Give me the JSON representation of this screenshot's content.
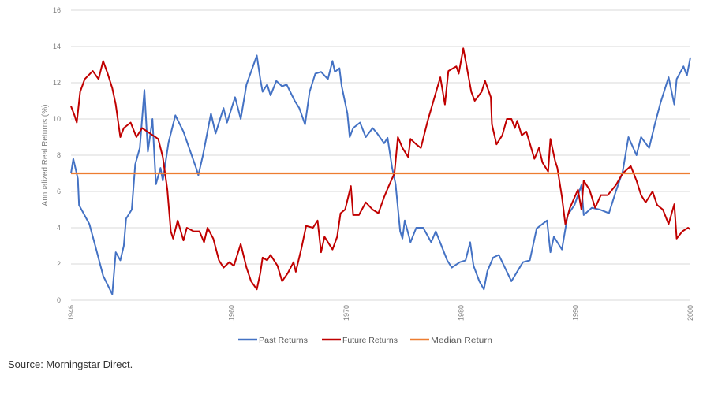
{
  "chart_data": {
    "type": "line",
    "title": "",
    "xlabel": "",
    "ylabel": "Annualized Real Returns (%)",
    "xlim": [
      1946,
      2000
    ],
    "ylim": [
      0,
      16
    ],
    "grid": true,
    "legend_position": "bottom",
    "x_ticks": [
      1946,
      1960,
      1970,
      1980,
      1990,
      2000
    ],
    "x_tick_labels": [
      "1946",
      "1960",
      "1970",
      "1980",
      "1990",
      "2000"
    ],
    "y_ticks": [
      0,
      2,
      4,
      6,
      8,
      10,
      12,
      14,
      16
    ],
    "y_tick_labels": [
      "0",
      "2",
      "4",
      "6",
      "8",
      "10",
      "12",
      "14",
      "16"
    ],
    "series": [
      {
        "name": "Past Returns",
        "color": "#4472C4",
        "points": [
          [
            1946.0,
            7.0
          ],
          [
            1946.2,
            7.8
          ],
          [
            1946.6,
            6.7
          ],
          [
            1946.7,
            5.25
          ],
          [
            1947.6,
            4.2
          ],
          [
            1948.2,
            2.8
          ],
          [
            1948.8,
            1.35
          ],
          [
            1949.6,
            0.33
          ],
          [
            1949.9,
            2.65
          ],
          [
            1950.3,
            2.2
          ],
          [
            1950.6,
            3.0
          ],
          [
            1950.8,
            4.5
          ],
          [
            1951.3,
            5.0
          ],
          [
            1951.6,
            7.5
          ],
          [
            1952.0,
            8.4
          ],
          [
            1952.4,
            11.6
          ],
          [
            1952.7,
            8.2
          ],
          [
            1953.1,
            10.0
          ],
          [
            1953.4,
            6.4
          ],
          [
            1953.8,
            7.3
          ],
          [
            1954.0,
            6.6
          ],
          [
            1954.5,
            8.7
          ],
          [
            1955.1,
            10.2
          ],
          [
            1955.8,
            9.3
          ],
          [
            1956.3,
            8.4
          ],
          [
            1956.9,
            7.3
          ],
          [
            1957.1,
            6.9
          ],
          [
            1957.5,
            8.0
          ],
          [
            1958.2,
            10.3
          ],
          [
            1958.6,
            9.2
          ],
          [
            1959.3,
            10.6
          ],
          [
            1959.6,
            9.8
          ],
          [
            1960.3,
            11.2
          ],
          [
            1960.8,
            10.0
          ],
          [
            1961.3,
            11.9
          ],
          [
            1962.2,
            13.5
          ],
          [
            1962.5,
            12.2
          ],
          [
            1962.7,
            11.5
          ],
          [
            1963.1,
            11.9
          ],
          [
            1963.4,
            11.3
          ],
          [
            1963.9,
            12.1
          ],
          [
            1964.4,
            11.8
          ],
          [
            1964.8,
            11.9
          ],
          [
            1965.5,
            11.0
          ],
          [
            1965.9,
            10.6
          ],
          [
            1966.4,
            9.7
          ],
          [
            1966.8,
            11.5
          ],
          [
            1967.3,
            12.5
          ],
          [
            1967.8,
            12.6
          ],
          [
            1968.4,
            12.2
          ],
          [
            1968.8,
            13.2
          ],
          [
            1969.0,
            12.6
          ],
          [
            1969.4,
            12.8
          ],
          [
            1969.6,
            11.8
          ],
          [
            1970.1,
            10.3
          ],
          [
            1970.3,
            9.0
          ],
          [
            1970.6,
            9.5
          ],
          [
            1971.2,
            9.8
          ],
          [
            1971.7,
            9.0
          ],
          [
            1972.3,
            9.5
          ],
          [
            1972.7,
            9.2
          ],
          [
            1973.3,
            8.66
          ],
          [
            1973.6,
            8.96
          ],
          [
            1974.0,
            7.3
          ],
          [
            1974.3,
            6.4
          ],
          [
            1974.7,
            3.8
          ],
          [
            1974.9,
            3.4
          ],
          [
            1975.1,
            4.4
          ],
          [
            1975.6,
            3.2
          ],
          [
            1976.1,
            4.0
          ],
          [
            1976.7,
            4.0
          ],
          [
            1977.4,
            3.2
          ],
          [
            1977.8,
            3.8
          ],
          [
            1978.8,
            2.2
          ],
          [
            1979.2,
            1.8
          ],
          [
            1979.9,
            2.1
          ],
          [
            1980.4,
            2.2
          ],
          [
            1980.8,
            3.2
          ],
          [
            1981.1,
            1.9
          ],
          [
            1981.6,
            1.05
          ],
          [
            1982.0,
            0.6
          ],
          [
            1982.3,
            1.6
          ],
          [
            1982.8,
            2.35
          ],
          [
            1983.3,
            2.5
          ],
          [
            1984.4,
            1.05
          ],
          [
            1985.4,
            2.1
          ],
          [
            1986.0,
            2.2
          ],
          [
            1986.6,
            3.96
          ],
          [
            1987.5,
            4.4
          ],
          [
            1987.8,
            2.65
          ],
          [
            1988.1,
            3.5
          ],
          [
            1988.8,
            2.8
          ],
          [
            1989.3,
            4.7
          ],
          [
            1989.9,
            5.26
          ],
          [
            1990.5,
            6.35
          ],
          [
            1990.7,
            4.7
          ],
          [
            1991.4,
            5.1
          ],
          [
            1992.1,
            5.0
          ],
          [
            1992.9,
            4.8
          ],
          [
            1993.5,
            6.0
          ],
          [
            1994.1,
            7.1
          ],
          [
            1994.6,
            9.0
          ],
          [
            1995.3,
            8.0
          ],
          [
            1995.7,
            9.0
          ],
          [
            1996.4,
            8.4
          ],
          [
            1996.9,
            9.7
          ],
          [
            1997.4,
            10.9
          ],
          [
            1998.1,
            12.3
          ],
          [
            1998.6,
            10.8
          ],
          [
            1998.8,
            12.2
          ],
          [
            1999.4,
            12.9
          ],
          [
            1999.7,
            12.4
          ],
          [
            2000.0,
            13.4
          ]
        ]
      },
      {
        "name": "Future Returns",
        "color": "#C00000",
        "points": [
          [
            1946.0,
            10.7
          ],
          [
            1946.3,
            10.2
          ],
          [
            1946.5,
            9.8
          ],
          [
            1946.8,
            11.5
          ],
          [
            1947.2,
            12.2
          ],
          [
            1947.9,
            12.65
          ],
          [
            1948.4,
            12.2
          ],
          [
            1948.8,
            13.2
          ],
          [
            1949.2,
            12.5
          ],
          [
            1949.6,
            11.7
          ],
          [
            1949.9,
            10.8
          ],
          [
            1950.3,
            9.0
          ],
          [
            1950.6,
            9.5
          ],
          [
            1951.2,
            9.8
          ],
          [
            1951.7,
            9.0
          ],
          [
            1952.2,
            9.5
          ],
          [
            1952.9,
            9.2
          ],
          [
            1953.6,
            8.9
          ],
          [
            1954.0,
            7.9
          ],
          [
            1954.4,
            6.1
          ],
          [
            1954.7,
            3.8
          ],
          [
            1954.9,
            3.4
          ],
          [
            1955.3,
            4.4
          ],
          [
            1955.8,
            3.3
          ],
          [
            1956.1,
            4.0
          ],
          [
            1956.7,
            3.8
          ],
          [
            1957.2,
            3.8
          ],
          [
            1957.6,
            3.2
          ],
          [
            1957.9,
            4.0
          ],
          [
            1958.4,
            3.4
          ],
          [
            1958.9,
            2.2
          ],
          [
            1959.3,
            1.8
          ],
          [
            1959.8,
            2.1
          ],
          [
            1960.2,
            1.9
          ],
          [
            1960.8,
            3.1
          ],
          [
            1961.3,
            1.8
          ],
          [
            1961.7,
            1.05
          ],
          [
            1962.2,
            0.6
          ],
          [
            1962.5,
            1.5
          ],
          [
            1962.7,
            2.35
          ],
          [
            1963.1,
            2.2
          ],
          [
            1963.4,
            2.5
          ],
          [
            1964.0,
            1.9
          ],
          [
            1964.4,
            1.05
          ],
          [
            1964.9,
            1.5
          ],
          [
            1965.4,
            2.1
          ],
          [
            1965.6,
            1.57
          ],
          [
            1966.1,
            2.9
          ],
          [
            1966.5,
            4.1
          ],
          [
            1967.1,
            4.0
          ],
          [
            1967.5,
            4.4
          ],
          [
            1967.8,
            2.65
          ],
          [
            1968.1,
            3.5
          ],
          [
            1968.5,
            3.1
          ],
          [
            1968.8,
            2.8
          ],
          [
            1969.2,
            3.5
          ],
          [
            1969.5,
            4.8
          ],
          [
            1969.9,
            5.0
          ],
          [
            1970.4,
            6.3
          ],
          [
            1970.6,
            4.7
          ],
          [
            1971.1,
            4.7
          ],
          [
            1971.7,
            5.4
          ],
          [
            1972.3,
            5.0
          ],
          [
            1972.8,
            4.8
          ],
          [
            1973.3,
            5.7
          ],
          [
            1973.7,
            6.3
          ],
          [
            1974.2,
            7.0
          ],
          [
            1974.5,
            9.0
          ],
          [
            1974.9,
            8.4
          ],
          [
            1975.4,
            7.9
          ],
          [
            1975.6,
            8.9
          ],
          [
            1976.1,
            8.6
          ],
          [
            1976.5,
            8.4
          ],
          [
            1977.1,
            9.9
          ],
          [
            1977.6,
            11.0
          ],
          [
            1978.2,
            12.3
          ],
          [
            1978.6,
            10.8
          ],
          [
            1978.9,
            12.65
          ],
          [
            1979.6,
            12.9
          ],
          [
            1979.8,
            12.5
          ],
          [
            1980.2,
            13.9
          ],
          [
            1980.5,
            12.9
          ],
          [
            1980.9,
            11.5
          ],
          [
            1981.2,
            11.0
          ],
          [
            1981.8,
            11.5
          ],
          [
            1982.1,
            12.1
          ],
          [
            1982.6,
            11.2
          ],
          [
            1982.7,
            9.7
          ],
          [
            1983.1,
            8.6
          ],
          [
            1983.6,
            9.1
          ],
          [
            1984.0,
            10.0
          ],
          [
            1984.4,
            10.0
          ],
          [
            1984.7,
            9.5
          ],
          [
            1984.9,
            9.9
          ],
          [
            1985.3,
            9.1
          ],
          [
            1985.7,
            9.3
          ],
          [
            1986.0,
            8.66
          ],
          [
            1986.4,
            7.8
          ],
          [
            1986.8,
            8.4
          ],
          [
            1987.1,
            7.6
          ],
          [
            1987.6,
            7.1
          ],
          [
            1987.8,
            8.9
          ],
          [
            1988.2,
            7.7
          ],
          [
            1988.4,
            7.3
          ],
          [
            1988.8,
            5.7
          ],
          [
            1989.1,
            4.2
          ],
          [
            1989.5,
            5.1
          ],
          [
            1990.2,
            6.1
          ],
          [
            1990.5,
            5.0
          ],
          [
            1990.7,
            6.6
          ],
          [
            1991.2,
            6.1
          ],
          [
            1991.7,
            5.1
          ],
          [
            1992.2,
            5.8
          ],
          [
            1992.8,
            5.8
          ],
          [
            1993.5,
            6.35
          ],
          [
            1994.1,
            7.0
          ],
          [
            1994.8,
            7.4
          ],
          [
            1995.3,
            6.6
          ],
          [
            1995.7,
            5.8
          ],
          [
            1996.1,
            5.4
          ],
          [
            1996.7,
            6.0
          ],
          [
            1997.1,
            5.26
          ],
          [
            1997.6,
            5.0
          ],
          [
            1998.1,
            4.2
          ],
          [
            1998.6,
            5.3
          ],
          [
            1998.8,
            3.4
          ],
          [
            1999.3,
            3.8
          ],
          [
            1999.8,
            4.0
          ],
          [
            2000.0,
            3.9
          ]
        ]
      },
      {
        "name": "Median Return",
        "color": "#ED7D31",
        "points": [
          [
            1946.0,
            7.0
          ],
          [
            2000.0,
            7.0
          ]
        ]
      }
    ]
  },
  "source_note": "Source: Morningstar Direct."
}
